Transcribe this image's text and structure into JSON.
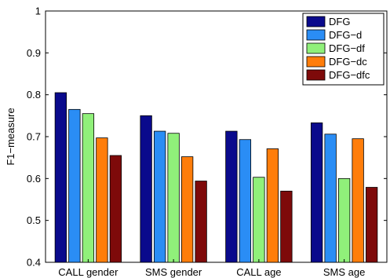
{
  "chart_data": {
    "type": "bar",
    "title": "",
    "xlabel": "",
    "ylabel": "F1−measure",
    "ylim": [
      0.4,
      1.0
    ],
    "yticks": [
      0.4,
      0.5,
      0.6,
      0.7,
      0.8,
      0.9,
      1.0
    ],
    "ytick_labels": [
      "0.4",
      "0.5",
      "0.6",
      "0.7",
      "0.8",
      "0.9",
      "1"
    ],
    "categories": [
      "CALL gender",
      "SMS gender",
      "CALL age",
      "SMS age"
    ],
    "grid": false,
    "legend_position": "top-right",
    "series": [
      {
        "name": "DFG",
        "color": "#0a0a8c",
        "values": [
          0.805,
          0.75,
          0.713,
          0.733
        ]
      },
      {
        "name": "DFG−d",
        "color": "#2a8df5",
        "values": [
          0.765,
          0.713,
          0.693,
          0.706
        ]
      },
      {
        "name": "DFG−df",
        "color": "#90f07a",
        "values": [
          0.755,
          0.708,
          0.603,
          0.6
        ]
      },
      {
        "name": "DFG−dc",
        "color": "#ff7d0a",
        "values": [
          0.697,
          0.652,
          0.671,
          0.695
        ]
      },
      {
        "name": "DFG−dfc",
        "color": "#7e0a0a",
        "values": [
          0.655,
          0.594,
          0.57,
          0.579
        ]
      }
    ]
  }
}
